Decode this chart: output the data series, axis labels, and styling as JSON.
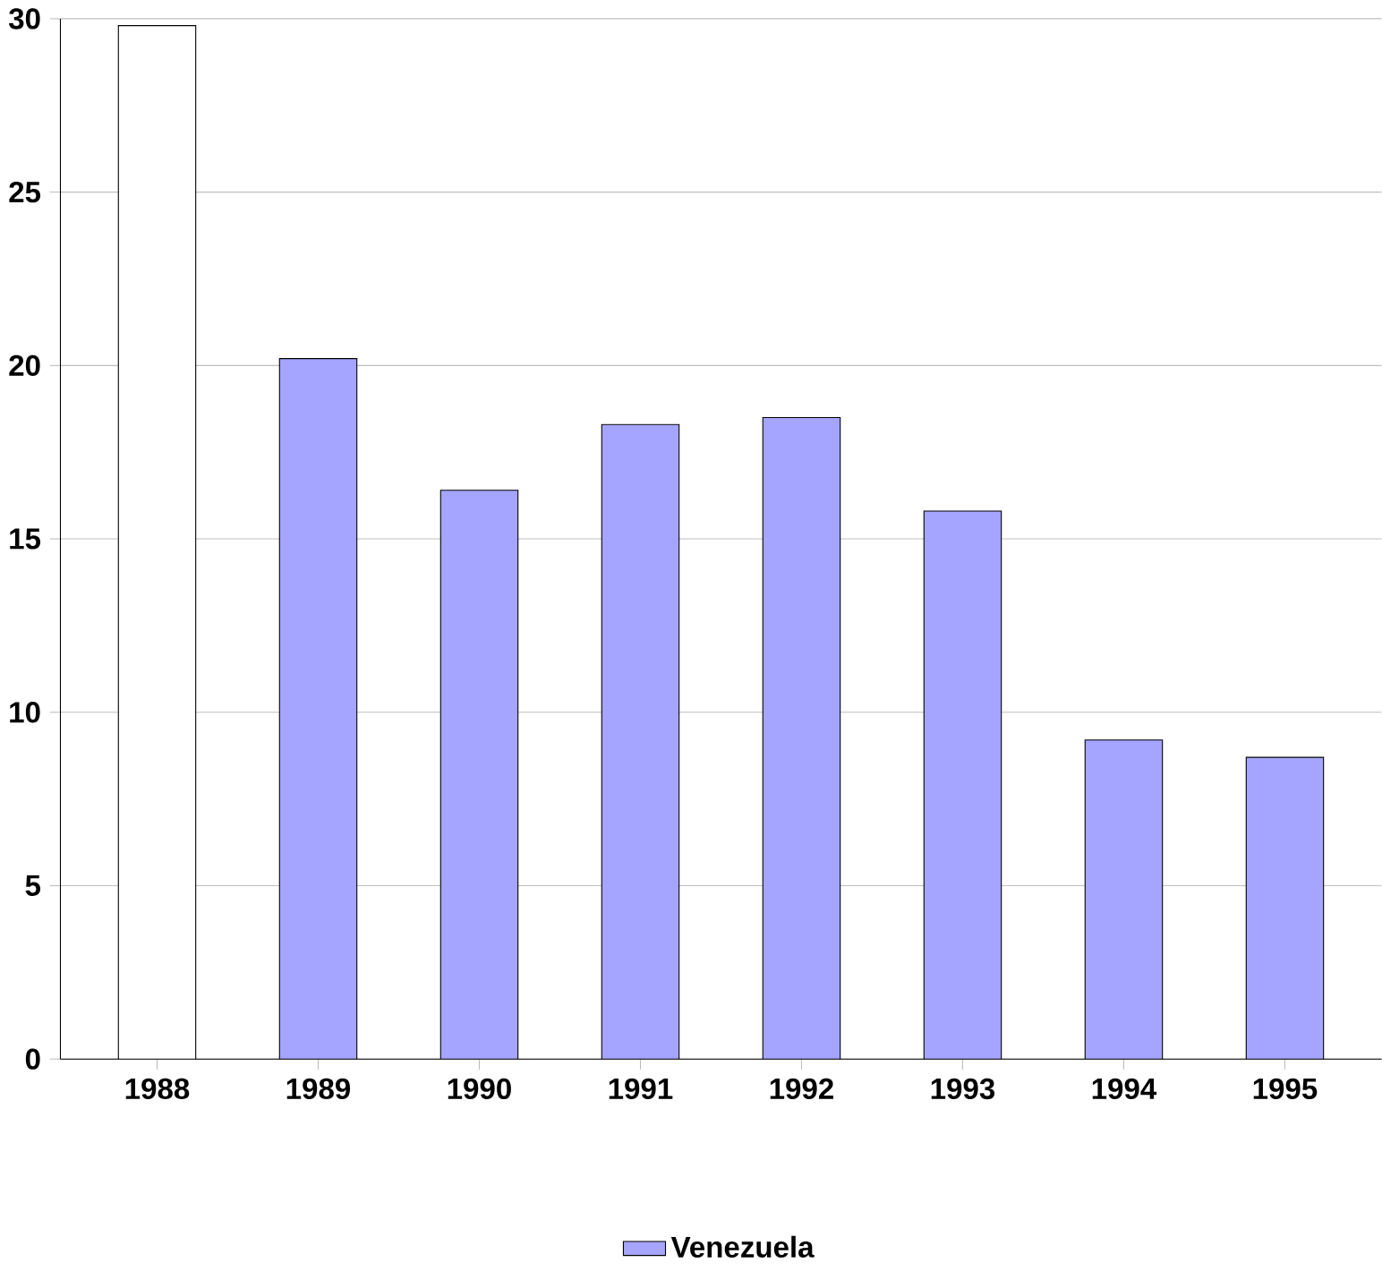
{
  "chart_data": {
    "type": "bar",
    "categories": [
      "1988",
      "1989",
      "1990",
      "1991",
      "1992",
      "1993",
      "1994",
      "1995"
    ],
    "series": [
      {
        "name": "Venezuela",
        "color": "#a5a5ff",
        "colors": [
          "#ffffff",
          "#a5a5ff",
          "#a5a5ff",
          "#a5a5ff",
          "#a5a5ff",
          "#a5a5ff",
          "#a5a5ff",
          "#a5a5ff"
        ],
        "values": [
          29.8,
          20.2,
          16.4,
          18.3,
          18.5,
          15.8,
          9.2,
          8.7
        ]
      }
    ],
    "ylim": [
      0,
      30
    ],
    "yticks": [
      0,
      5,
      10,
      15,
      20,
      25,
      30
    ],
    "grid": "y",
    "legend": "bottom"
  }
}
